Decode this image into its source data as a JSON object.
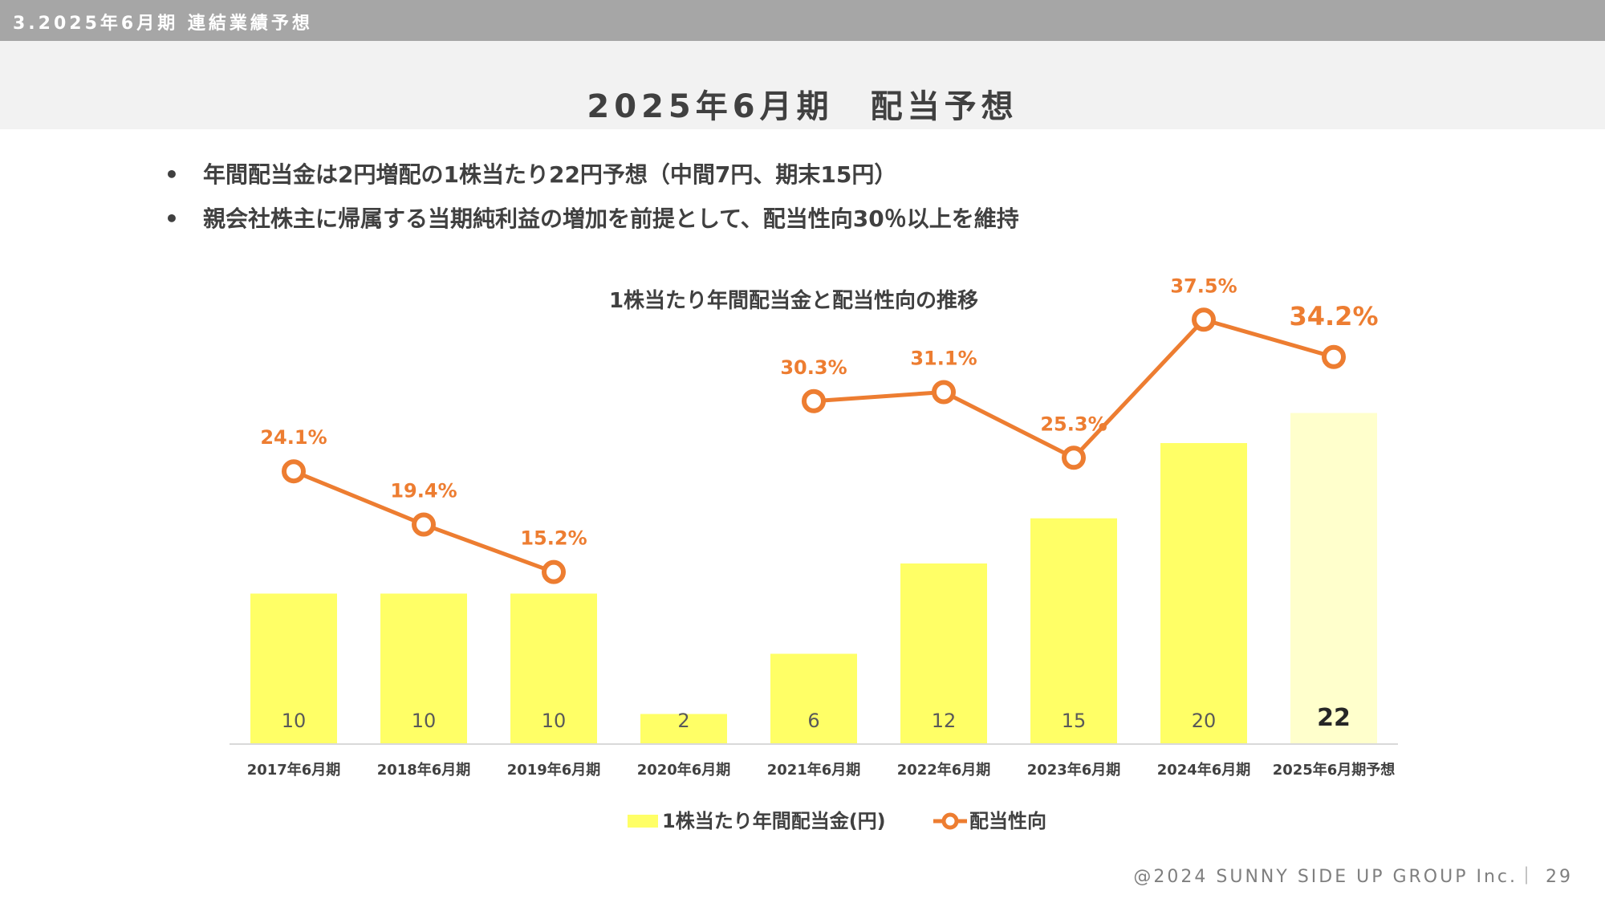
{
  "header": {
    "section": "3.2025年6月期 連結業績予想"
  },
  "page_title": "2025年6月期　配当予想",
  "bullets": [
    "年間配当金は2円増配の1株当たり22円予想（中間7円、期末15円）",
    "親会社株主に帰属する当期純利益の増加を前提として、配当性向30％以上を維持"
  ],
  "bullet_symbol": "•",
  "chart_data": {
    "type": "bar+line",
    "title": "1株当たり年間配当金と配当性向の推移",
    "categories": [
      "2017年6月期",
      "2018年6月期",
      "2019年6月期",
      "2020年6月期",
      "2021年6月期",
      "2022年6月期",
      "2023年6月期",
      "2024年6月期",
      "2025年6月期予想"
    ],
    "series": [
      {
        "name": "1株当たり年間配当金(円)",
        "kind": "bar",
        "values": [
          10,
          10,
          10,
          2,
          6,
          12,
          15,
          20,
          22
        ],
        "value_labels": [
          "10",
          "10",
          "10",
          "2",
          "6",
          "12",
          "15",
          "20",
          "22"
        ],
        "color": "#ffff66",
        "forecast_color": "#ffffcc"
      },
      {
        "name": "配当性向",
        "kind": "line",
        "values": [
          24.1,
          19.4,
          15.2,
          null,
          30.3,
          31.1,
          25.3,
          37.5,
          34.2
        ],
        "value_labels": [
          "24.1%",
          "19.4%",
          "15.2%",
          "",
          "30.3%",
          "31.1%",
          "25.3%",
          "37.5%",
          "34.2%"
        ],
        "color": "#ed7d31"
      }
    ],
    "legend_position": "bottom",
    "grid": false
  },
  "footer": {
    "copyright": "@2024 SUNNY SIDE UP GROUP Inc.｜",
    "page_number": "29"
  }
}
